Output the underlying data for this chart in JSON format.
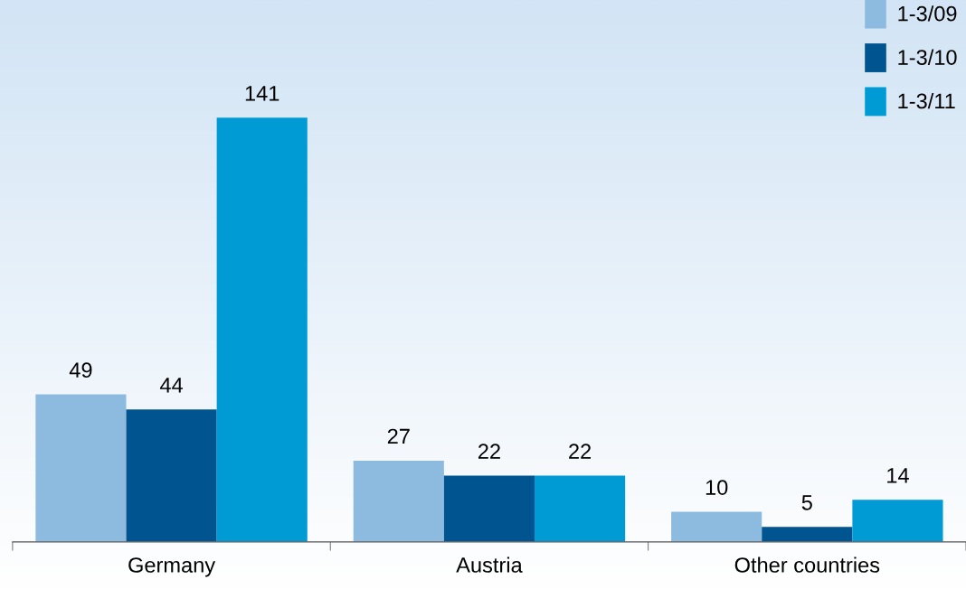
{
  "chart_data": {
    "type": "bar",
    "categories": [
      "Germany",
      "Austria",
      "Other countries"
    ],
    "series": [
      {
        "name": "1-3/09",
        "color": "#8dbbe0",
        "values": [
          49,
          27,
          10
        ]
      },
      {
        "name": "1-3/10",
        "color": "#00548f",
        "values": [
          44,
          22,
          5
        ]
      },
      {
        "name": "1-3/11",
        "color": "#009bd5",
        "values": [
          141,
          22,
          14
        ]
      }
    ],
    "data_labels": true,
    "legend": "top right",
    "grid": false
  }
}
